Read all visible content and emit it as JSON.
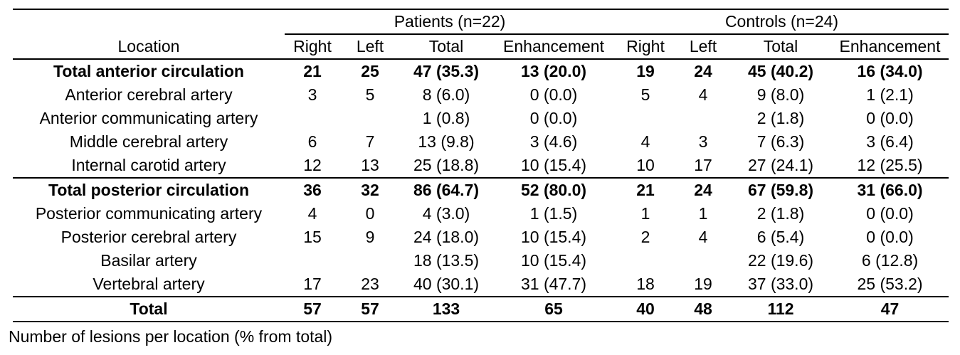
{
  "table": {
    "location_header": "Location",
    "groups": [
      {
        "label": "Patients (n=22)",
        "columns": [
          "Right",
          "Left",
          "Total",
          "Enhancement"
        ]
      },
      {
        "label": "Controls (n=24)",
        "columns": [
          "Right",
          "Left",
          "Total",
          "Enhancement"
        ]
      }
    ],
    "rows": [
      {
        "location": "Total anterior circulation",
        "bold": true,
        "rule_above": false,
        "total_row": false,
        "values": [
          "21",
          "25",
          "47 (35.3)",
          "13 (20.0)",
          "19",
          "24",
          "45 (40.2)",
          "16 (34.0)"
        ]
      },
      {
        "location": "Anterior cerebral artery",
        "bold": false,
        "rule_above": false,
        "total_row": false,
        "values": [
          "3",
          "5",
          "8 (6.0)",
          "0 (0.0)",
          "5",
          "4",
          "9 (8.0)",
          "1 (2.1)"
        ]
      },
      {
        "location": "Anterior communicating artery",
        "bold": false,
        "rule_above": false,
        "total_row": false,
        "values": [
          "",
          "",
          "1 (0.8)",
          "0 (0.0)",
          "",
          "",
          "2 (1.8)",
          "0 (0.0)"
        ]
      },
      {
        "location": "Middle cerebral artery",
        "bold": false,
        "rule_above": false,
        "total_row": false,
        "values": [
          "6",
          "7",
          "13 (9.8)",
          "3 (4.6)",
          "4",
          "3",
          "7 (6.3)",
          "3 (6.4)"
        ]
      },
      {
        "location": "Internal carotid artery",
        "bold": false,
        "rule_above": false,
        "total_row": false,
        "values": [
          "12",
          "13",
          "25 (18.8)",
          "10 (15.4)",
          "10",
          "17",
          "27 (24.1)",
          "12 (25.5)"
        ]
      },
      {
        "location": "Total posterior circulation",
        "bold": true,
        "rule_above": true,
        "total_row": false,
        "values": [
          "36",
          "32",
          "86 (64.7)",
          "52 (80.0)",
          "21",
          "24",
          "67 (59.8)",
          "31 (66.0)"
        ]
      },
      {
        "location": "Posterior communicating artery",
        "bold": false,
        "rule_above": false,
        "total_row": false,
        "values": [
          "4",
          "0",
          "4 (3.0)",
          "1 (1.5)",
          "1",
          "1",
          "2 (1.8)",
          "0 (0.0)"
        ]
      },
      {
        "location": "Posterior cerebral artery",
        "bold": false,
        "rule_above": false,
        "total_row": false,
        "values": [
          "15",
          "9",
          "24 (18.0)",
          "10 (15.4)",
          "2",
          "4",
          "6 (5.4)",
          "0 (0.0)"
        ]
      },
      {
        "location": "Basilar artery",
        "bold": false,
        "rule_above": false,
        "total_row": false,
        "values": [
          "",
          "",
          "18 (13.5)",
          "10 (15.4)",
          "",
          "",
          "22 (19.6)",
          "6 (12.8)"
        ]
      },
      {
        "location": "Vertebral artery",
        "bold": false,
        "rule_above": false,
        "total_row": false,
        "values": [
          "17",
          "23",
          "40 (30.1)",
          "31 (47.7)",
          "18",
          "19",
          "37 (33.0)",
          "25 (53.2)"
        ]
      },
      {
        "location": "Total",
        "bold": true,
        "rule_above": true,
        "total_row": true,
        "values": [
          "57",
          "57",
          "133",
          "65",
          "40",
          "48",
          "112",
          "47"
        ]
      }
    ],
    "footnote": "Number of lesions per location (% from total)"
  }
}
